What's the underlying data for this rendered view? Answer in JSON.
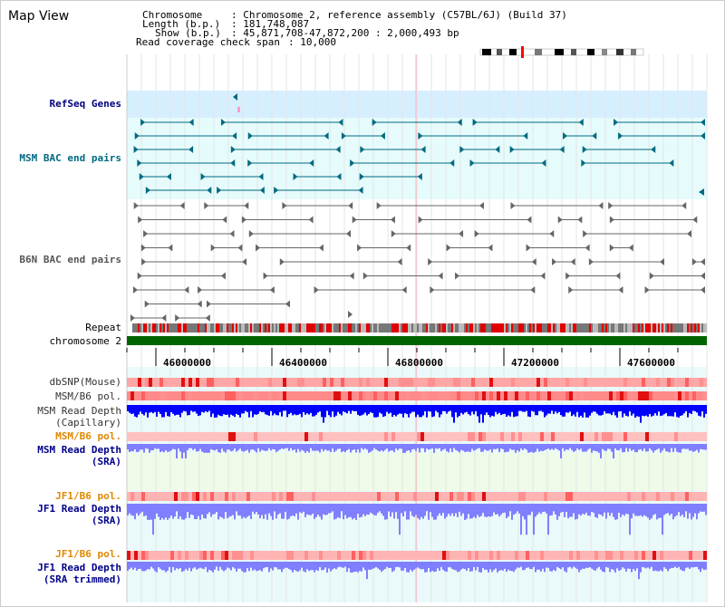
{
  "title": "Map View",
  "info": {
    "chromosome_label": "Chromosome",
    "chromosome_value": ": Chromosome 2, reference assembly (C57BL/6J) (Build 37)",
    "length_label": "Length (b.p.)",
    "length_value": ": 181,748,087",
    "show_label": "Show (b.p.)",
    "show_value": ": 45,871,708-47,872,200 : 2,000,493 bp",
    "coverage_label": "Read coverage check span",
    "coverage_value": ": 10,000"
  },
  "tracks": {
    "refseq": "RefSeq Genes",
    "msm_bac": "MSM BAC end pairs",
    "b6n_bac": "B6N BAC end pairs",
    "repeat": "Repeat",
    "chromosome": "chromosome 2",
    "dbsnp": "dbSNP(Mouse)",
    "msm_pol": "MSM/B6 pol.",
    "msm_cap_1": "MSM Read Depth",
    "msm_cap_2": "(Capillary)",
    "msm_pol_sra": "MSM/B6 pol.",
    "msm_sra_1": "MSM Read Depth",
    "msm_sra_2": "(SRA)",
    "jf1_pol": "JF1/B6 pol.",
    "jf1_sra_1": "JF1 Read Depth",
    "jf1_sra_2": "(SRA)",
    "jf1_pol_trim": "JF1/B6 pol.",
    "jf1_trim_1": "JF1 Read Depth",
    "jf1_trim_2": "(SRA trimmed)"
  },
  "axis": {
    "ticks": [
      "46000000",
      "46400000",
      "46800000",
      "47200000",
      "47600000"
    ]
  },
  "colors": {
    "refseq_bg": "#d6efff",
    "msm_bg": "#e6fbfb",
    "msm_feature": "#006a80",
    "b6n_feature": "#666666",
    "refseq_label": "#000080",
    "msm_label": "#006a80",
    "b6n_label": "#555555",
    "chromosome_bar": "#006400",
    "depth_capillary": "#0000ff",
    "depth_sra": "#7f7fff",
    "polymorphism": "#ff5050",
    "orange_label": "#e08800",
    "navy_label": "#00008b"
  }
}
